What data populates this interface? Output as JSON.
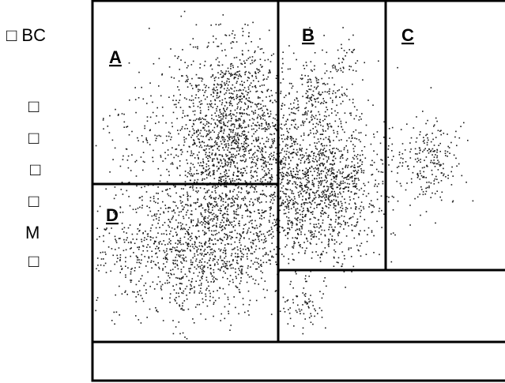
{
  "chart_data": {
    "type": "scatter",
    "xlabel": "",
    "ylabel_lines": [
      "□ BC",
      "□",
      "□",
      "□",
      "□",
      "M",
      "□"
    ],
    "region_labels": [
      "A",
      "B",
      "C",
      "D"
    ],
    "colors": {
      "frame": "#000000",
      "points": "#1a1a1a",
      "background": "#ffffff"
    },
    "grid": false,
    "legend": "none"
  }
}
